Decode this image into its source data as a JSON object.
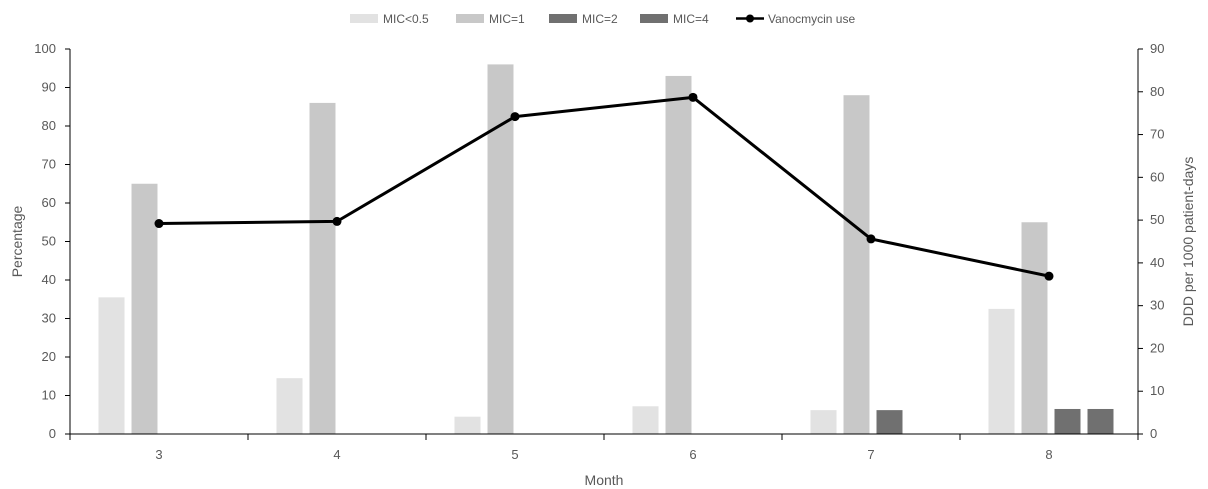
{
  "chart_data": {
    "type": "bar",
    "categories": [
      "3",
      "4",
      "5",
      "6",
      "7",
      "8"
    ],
    "xlabel": "Month",
    "ylabel": "Percentage",
    "y2label": "DDD per 1000 patient-days",
    "ylim": [
      0,
      100
    ],
    "y2lim": [
      0,
      90
    ],
    "yticks": [
      "0",
      "10",
      "20",
      "30",
      "40",
      "50",
      "60",
      "70",
      "80",
      "90",
      "100"
    ],
    "y2ticks": [
      "0",
      "10",
      "20",
      "30",
      "40",
      "50",
      "60",
      "70",
      "80",
      "90"
    ],
    "grid": false,
    "legend_position": "top",
    "series": [
      {
        "name": "MIC<0.5",
        "kind": "bar",
        "color": "#e2e2e2",
        "values": [
          35.5,
          14.5,
          4.5,
          7.2,
          6.2,
          32.5
        ]
      },
      {
        "name": "MIC=1",
        "kind": "bar",
        "color": "#c8c8c8",
        "values": [
          65,
          86,
          96,
          93,
          88,
          55
        ]
      },
      {
        "name": "MIC=2",
        "kind": "bar",
        "color": "#707070",
        "values": [
          0,
          0,
          0,
          0,
          6.2,
          6.5
        ]
      },
      {
        "name": "MIC=4",
        "kind": "bar",
        "color": "#707070",
        "values": [
          0,
          0,
          0,
          0,
          0,
          6.5
        ]
      },
      {
        "name": "Vanocmycin use",
        "kind": "line",
        "axis": "right",
        "color": "#000000",
        "values": [
          49.2,
          49.7,
          74.2,
          78.7,
          45.6,
          36.9
        ]
      }
    ]
  }
}
